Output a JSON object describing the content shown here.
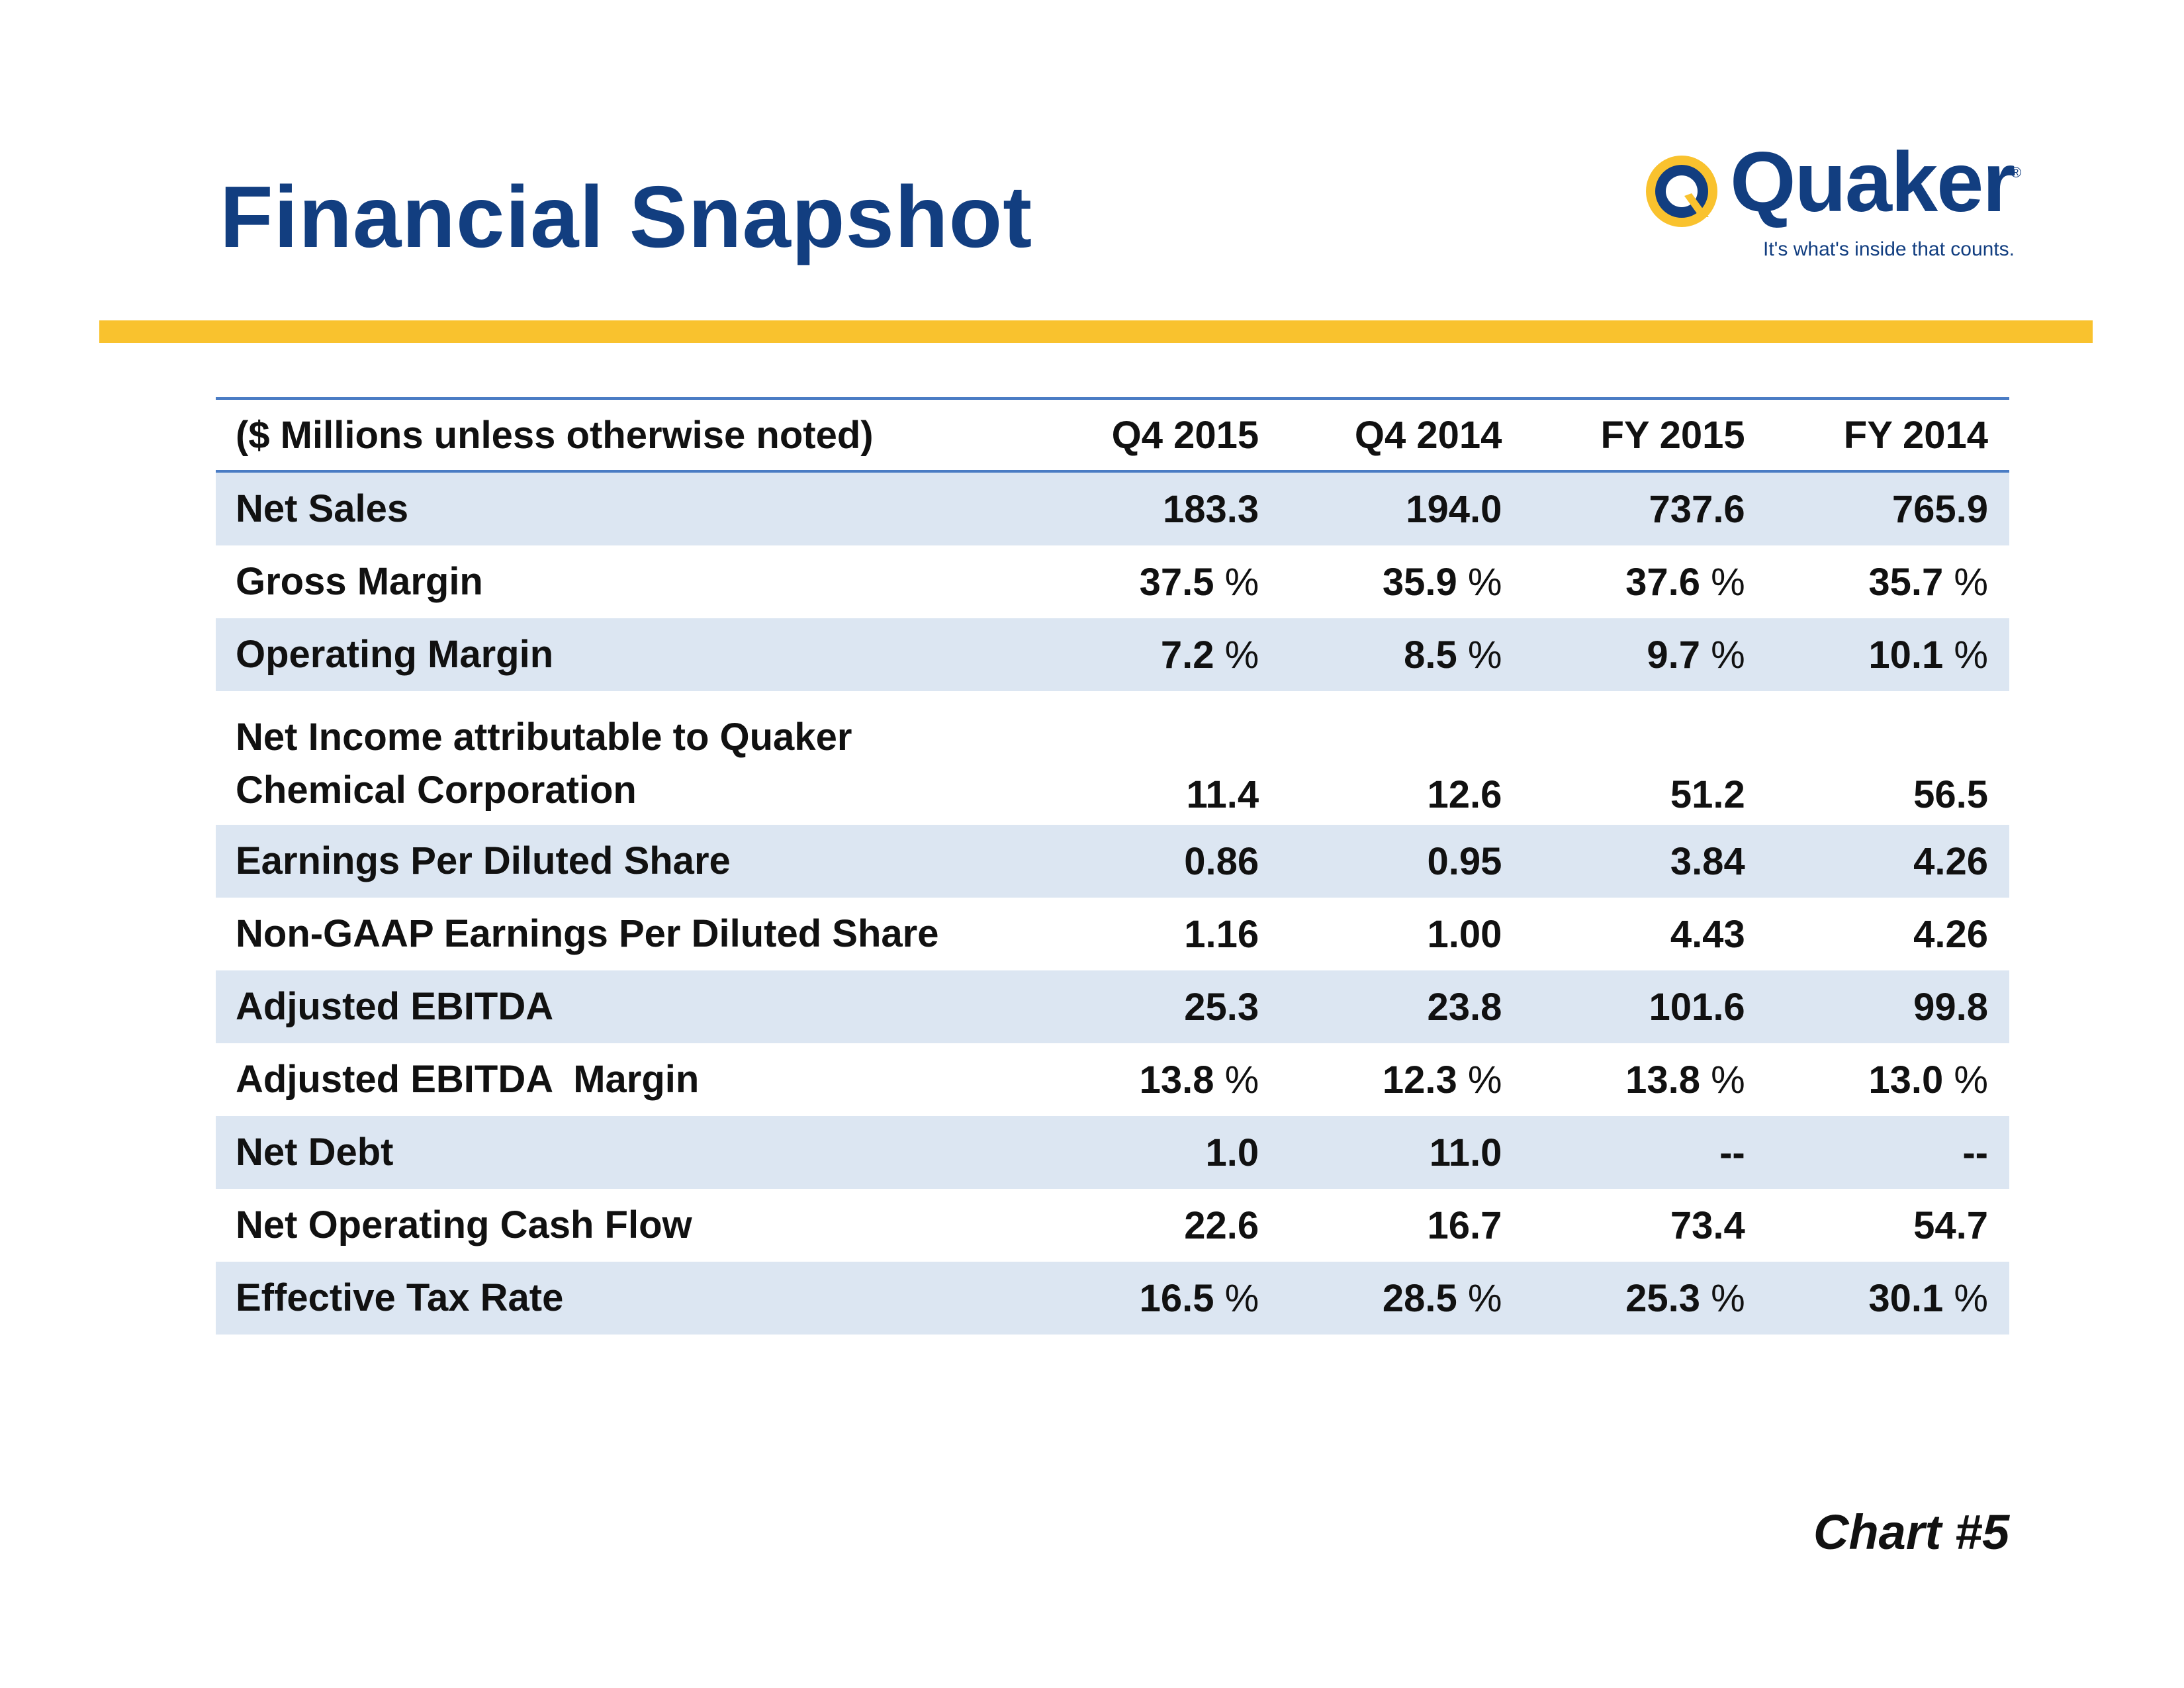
{
  "slide": {
    "title": "Financial Snapshot",
    "footer_label": "Chart #5"
  },
  "logo": {
    "brand": "Quaker",
    "registered_mark": "®",
    "tagline": "It's what's inside that counts.",
    "colors": {
      "navy": "#123e80",
      "gold": "#f9c22e"
    }
  },
  "table": {
    "header_label": "($ Millions unless otherwise noted)",
    "columns": [
      "Q4 2015",
      "Q4 2014",
      "FY 2015",
      "FY 2014"
    ],
    "rows": [
      {
        "label": "Net Sales",
        "values": [
          "183.3",
          "194.0",
          "737.6",
          "765.9"
        ],
        "unit": ""
      },
      {
        "label": "Gross Margin",
        "values": [
          "37.5",
          "35.9",
          "37.6",
          "35.7"
        ],
        "unit": "%"
      },
      {
        "label": "Operating Margin",
        "values": [
          "7.2",
          "8.5",
          "9.7",
          "10.1"
        ],
        "unit": "%"
      },
      {
        "label_line1": "Net Income attributable to Quaker",
        "label_line2": "Chemical Corporation",
        "values": [
          "11.4",
          "12.6",
          "51.2",
          "56.5"
        ],
        "unit": ""
      },
      {
        "label": "Earnings Per Diluted Share",
        "values": [
          "0.86",
          "0.95",
          "3.84",
          "4.26"
        ],
        "unit": ""
      },
      {
        "label": "Non-GAAP Earnings Per Diluted Share",
        "values": [
          "1.16",
          "1.00",
          "4.43",
          "4.26"
        ],
        "unit": ""
      },
      {
        "label": "Adjusted EBITDA",
        "values": [
          "25.3",
          "23.8",
          "101.6",
          "99.8"
        ],
        "unit": ""
      },
      {
        "label": "Adjusted EBITDA  Margin",
        "values": [
          "13.8",
          "12.3",
          "13.8",
          "13.0"
        ],
        "unit": "%"
      },
      {
        "label": "Net Debt",
        "values": [
          "1.0",
          "11.0",
          "--",
          "--"
        ],
        "unit": ""
      },
      {
        "label": "Net Operating Cash Flow",
        "values": [
          "22.6",
          "16.7",
          "73.4",
          "54.7"
        ],
        "unit": ""
      },
      {
        "label": "Effective Tax Rate",
        "values": [
          "16.5",
          "28.5",
          "25.3",
          "30.1"
        ],
        "unit": "%"
      }
    ],
    "colors": {
      "row_shade": "#dce6f2",
      "rule": "#4a7cc4"
    }
  }
}
